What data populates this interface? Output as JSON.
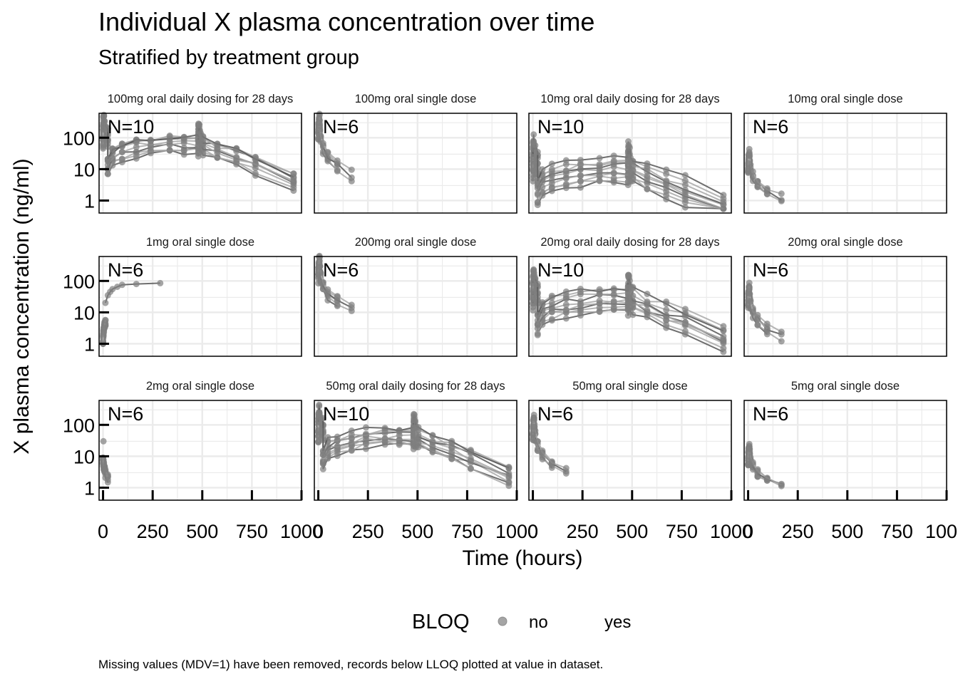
{
  "chart_data": {
    "type": "line",
    "title": "Individual X plasma concentration over time",
    "subtitle": "Stratified by treatment group",
    "xlabel": "Time (hours)",
    "ylabel": "X plasma concentration (ng/ml)",
    "xlim": [
      -20,
      1000
    ],
    "x_ticks": [
      0,
      250,
      500,
      750,
      1000
    ],
    "x_tick_labels": [
      "0",
      "250",
      "500",
      "750",
      "1000"
    ],
    "y_scale": "log",
    "ylim": [
      0.4,
      600
    ],
    "y_ticks": [
      1,
      10,
      100
    ],
    "y_tick_labels": [
      "1",
      "10",
      "100"
    ],
    "grid": true,
    "legend": {
      "title": "BLOQ",
      "entries": [
        "no",
        "yes"
      ],
      "placement": "bottom"
    },
    "caption": "Missing values (MDV=1) have been removed, records below LLOQ plotted at value in dataset.",
    "colors": {
      "point": "#7f7f7f",
      "line_light": "#a8a8a8",
      "line_dark": "#555555",
      "grid": "#ebebeb",
      "frame": "#000000"
    },
    "panels": [
      {
        "label": "100mg oral daily dosing for 28 days",
        "n_label": "N=10",
        "kind": "multi",
        "n": 10,
        "base": 30,
        "spread": 3.5
      },
      {
        "label": "100mg oral single dose",
        "n_label": "N=6",
        "kind": "single",
        "n": 6,
        "cmax": 400,
        "cend": 6,
        "spread": 1.8
      },
      {
        "label": "10mg oral daily dosing for 28 days",
        "n_label": "N=10",
        "kind": "multi",
        "n": 10,
        "base": 4,
        "spread": 6
      },
      {
        "label": "10mg oral single dose",
        "n_label": "N=6",
        "kind": "single",
        "n": 6,
        "cmax": 30,
        "cend": 1.2,
        "spread": 1.6
      },
      {
        "label": "1mg oral single dose",
        "n_label": "N=6",
        "kind": "rising",
        "n": 6
      },
      {
        "label": "200mg oral single dose",
        "n_label": "N=6",
        "kind": "single",
        "n": 6,
        "cmax": 450,
        "cend": 12,
        "spread": 1.8
      },
      {
        "label": "20mg oral daily dosing for 28 days",
        "n_label": "N=10",
        "kind": "multi",
        "n": 10,
        "base": 10,
        "spread": 5
      },
      {
        "label": "20mg oral single dose",
        "n_label": "N=6",
        "kind": "single",
        "n": 6,
        "cmax": 60,
        "cend": 1.7,
        "spread": 1.6
      },
      {
        "label": "2mg oral single dose",
        "n_label": "N=6",
        "kind": "low",
        "n": 6
      },
      {
        "label": "50mg oral daily dosing for 28 days",
        "n_label": "N=10",
        "kind": "multi",
        "n": 10,
        "base": 18,
        "spread": 3.5
      },
      {
        "label": "50mg oral single dose",
        "n_label": "N=6",
        "kind": "single",
        "n": 6,
        "cmax": 150,
        "cend": 3,
        "spread": 1.8
      },
      {
        "label": "5mg oral single dose",
        "n_label": "N=6",
        "kind": "single",
        "n": 6,
        "cmax": 20,
        "cend": 1.1,
        "spread": 1.5
      }
    ]
  }
}
